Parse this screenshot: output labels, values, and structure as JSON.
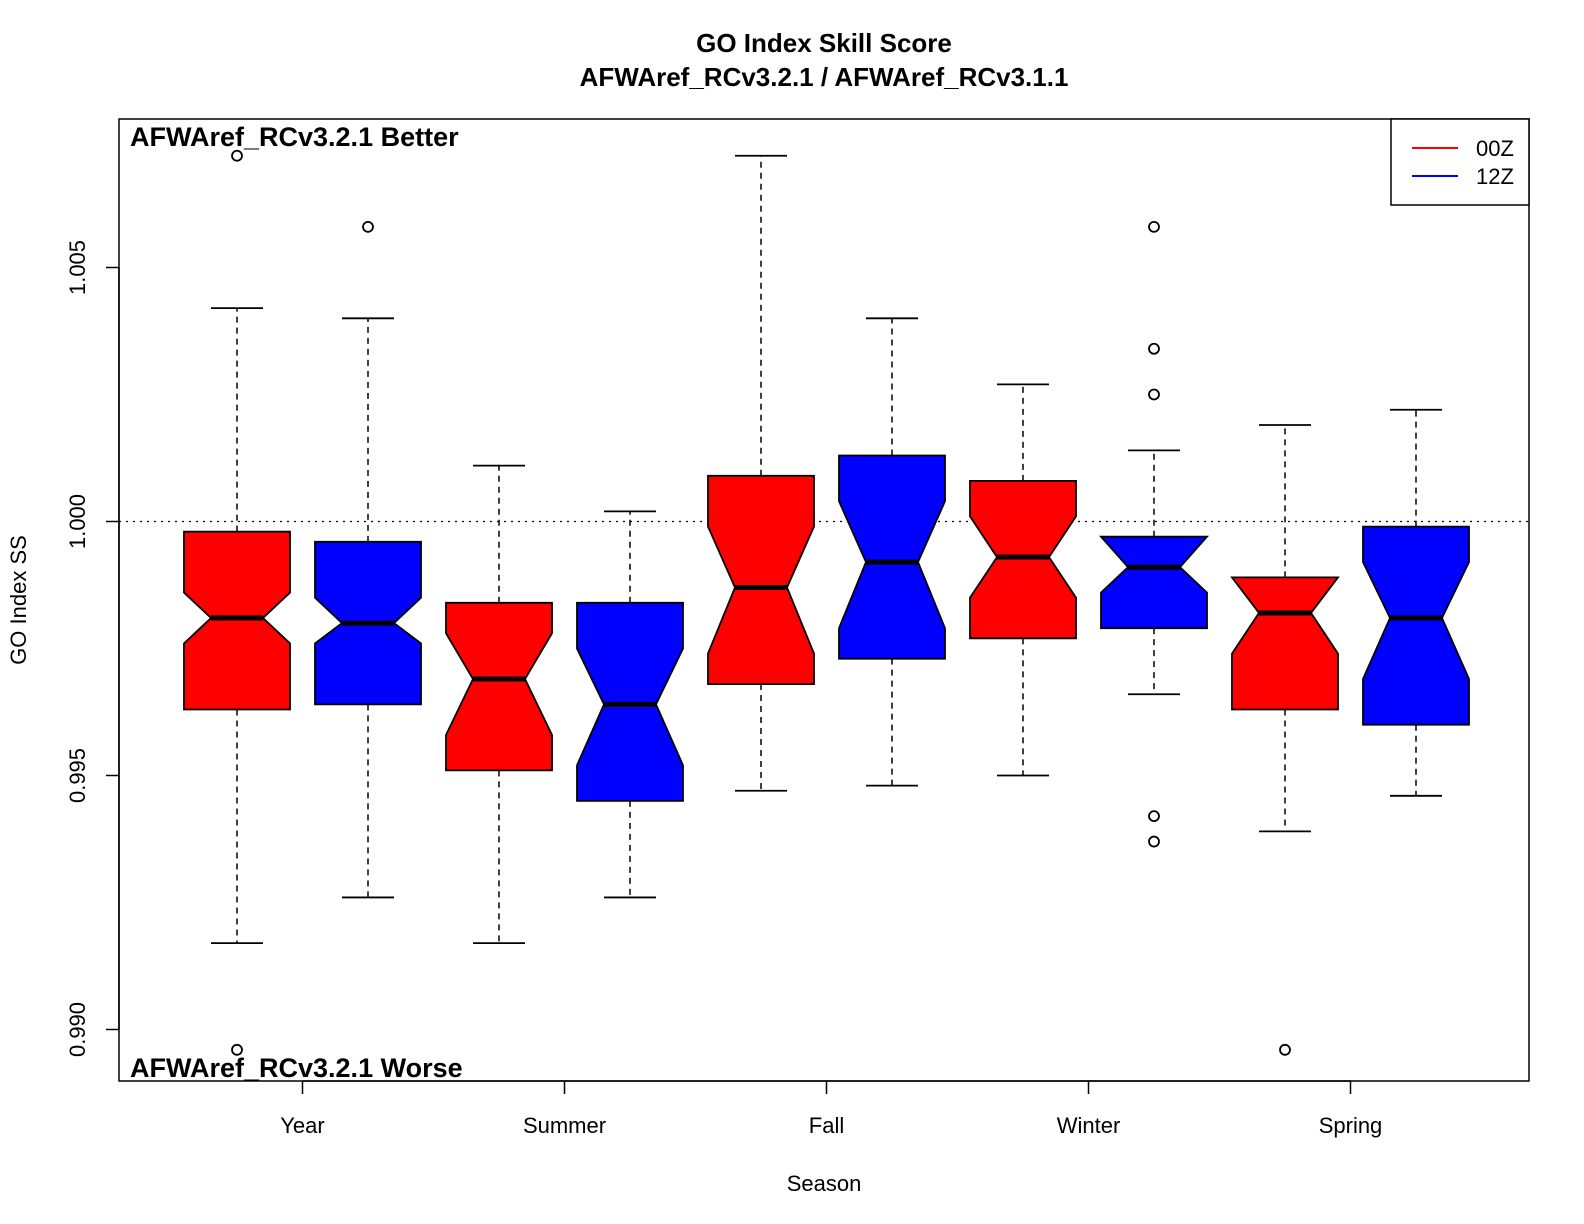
{
  "chart_data": {
    "type": "box",
    "title": "GO Index Skill Score",
    "subtitle": "AFWAref_RCv3.2.1 / AFWAref_RCv3.1.1",
    "xlabel": "Season",
    "ylabel": "GO Index SS",
    "ylim": [
      0.9889,
      1.0079
    ],
    "yticks": [
      "0.990",
      "0.995",
      "1.000",
      "1.005"
    ],
    "ytick_values": [
      0.99,
      0.995,
      1.0,
      1.005
    ],
    "reference_line": 1.0,
    "annotations": {
      "better": "AFWAref_RCv3.2.1 Better",
      "worse": "AFWAref_RCv3.2.1 Worse"
    },
    "categories": [
      "Year",
      "Summer",
      "Fall",
      "Winter",
      "Spring"
    ],
    "legend": {
      "position": "top-right",
      "entries": [
        "00Z",
        "12Z"
      ]
    },
    "colors": {
      "00Z": "#ff0000",
      "12Z": "#0000ff"
    },
    "series": [
      {
        "name": "00Z",
        "boxes": [
          {
            "category": "Year",
            "whisker_low": 0.9917,
            "q1": 0.9963,
            "median": 0.9981,
            "q3": 0.9998,
            "whisker_high": 1.0042,
            "notch_low": 0.9976,
            "notch_high": 0.9986,
            "outliers": [
              1.0072,
              0.9896
            ]
          },
          {
            "category": "Summer",
            "whisker_low": 0.9917,
            "q1": 0.9951,
            "median": 0.9969,
            "q3": 0.9984,
            "whisker_high": 1.0011,
            "notch_low": 0.9958,
            "notch_high": 0.9978,
            "outliers": []
          },
          {
            "category": "Fall",
            "whisker_low": 0.9947,
            "q1": 0.9968,
            "median": 0.9987,
            "q3": 1.0009,
            "whisker_high": 1.0072,
            "notch_low": 0.9974,
            "notch_high": 0.9999,
            "outliers": []
          },
          {
            "category": "Winter",
            "whisker_low": 0.995,
            "q1": 0.9977,
            "median": 0.9993,
            "q3": 1.0008,
            "whisker_high": 1.0027,
            "notch_low": 0.9985,
            "notch_high": 1.0001,
            "outliers": []
          },
          {
            "category": "Spring",
            "whisker_low": 0.9939,
            "q1": 0.9963,
            "median": 0.9982,
            "q3": 0.9989,
            "whisker_high": 1.0019,
            "notch_low": 0.9974,
            "notch_high": 0.9989,
            "outliers": [
              0.9896
            ]
          }
        ]
      },
      {
        "name": "12Z",
        "boxes": [
          {
            "category": "Year",
            "whisker_low": 0.9926,
            "q1": 0.9964,
            "median": 0.998,
            "q3": 0.9996,
            "whisker_high": 1.004,
            "notch_low": 0.9976,
            "notch_high": 0.9985,
            "outliers": [
              1.0058
            ]
          },
          {
            "category": "Summer",
            "whisker_low": 0.9926,
            "q1": 0.9945,
            "median": 0.9964,
            "q3": 0.9984,
            "whisker_high": 1.0002,
            "notch_low": 0.9952,
            "notch_high": 0.9975,
            "outliers": []
          },
          {
            "category": "Fall",
            "whisker_low": 0.9948,
            "q1": 0.9973,
            "median": 0.9992,
            "q3": 1.0013,
            "whisker_high": 1.004,
            "notch_low": 0.9979,
            "notch_high": 1.0004,
            "outliers": []
          },
          {
            "category": "Winter",
            "whisker_low": 0.9966,
            "q1": 0.9979,
            "median": 0.9991,
            "q3": 0.9997,
            "whisker_high": 1.0014,
            "notch_low": 0.9986,
            "notch_high": 0.9997,
            "outliers": [
              1.0058,
              1.0034,
              1.0025,
              0.9942,
              0.9937
            ]
          },
          {
            "category": "Spring",
            "whisker_low": 0.9946,
            "q1": 0.996,
            "median": 0.9981,
            "q3": 0.9999,
            "whisker_high": 1.0022,
            "notch_low": 0.9969,
            "notch_high": 0.9992,
            "outliers": []
          }
        ]
      }
    ]
  }
}
